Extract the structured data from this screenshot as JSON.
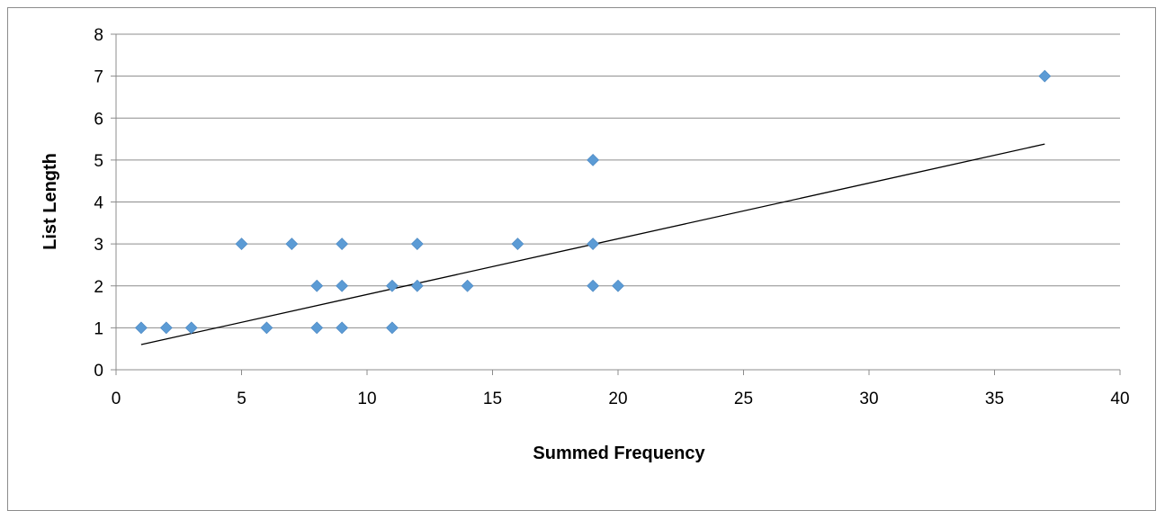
{
  "chart_data": {
    "type": "scatter",
    "title": "",
    "xlabel": "Summed Frequency",
    "ylabel": "List Length",
    "xlim": [
      0,
      40
    ],
    "ylim": [
      0,
      8
    ],
    "xticks": [
      0,
      5,
      10,
      15,
      20,
      25,
      30,
      35,
      40
    ],
    "yticks": [
      0,
      1,
      2,
      3,
      4,
      5,
      6,
      7,
      8
    ],
    "grid": "horizontal",
    "legend": "none",
    "marker": "diamond",
    "marker_color": "#5b9bd5",
    "series": [
      {
        "x": [
          1,
          2,
          3,
          6,
          8,
          9,
          11,
          8,
          9,
          11,
          12,
          14,
          19,
          20,
          5,
          7,
          9,
          12,
          16,
          19,
          19,
          37
        ],
        "y": [
          1,
          1,
          1,
          1,
          1,
          1,
          1,
          2,
          2,
          2,
          2,
          2,
          2,
          2,
          3,
          3,
          3,
          3,
          3,
          3,
          5,
          7
        ]
      }
    ],
    "trendline": {
      "type": "linear",
      "x_range": [
        1,
        37
      ],
      "y_at_start": 0.6,
      "y_at_end": 5.38,
      "color": "#000000"
    }
  }
}
